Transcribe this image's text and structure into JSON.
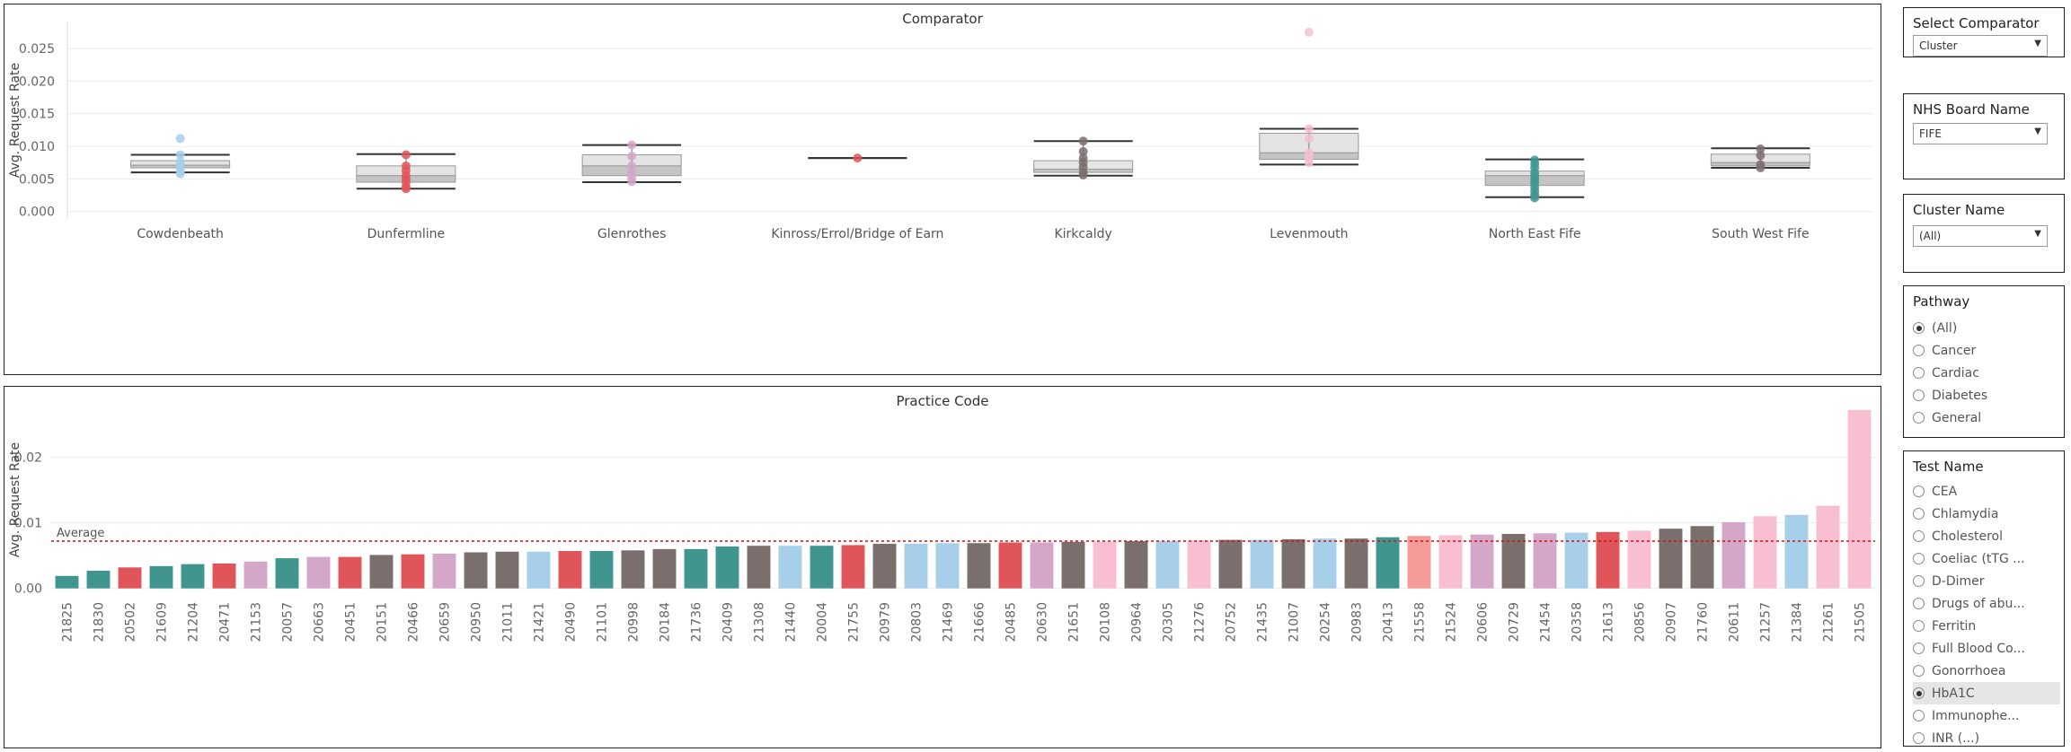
{
  "colors": {
    "teal": "#40968f",
    "red": "#e05559",
    "grey": "#7b6f6e",
    "pink": "#f7bfd0",
    "lilac": "#d4a7c9",
    "blue": "#a7cfe9",
    "salmon": "#f49a97",
    "avg_line": "#cc1111"
  },
  "filters": {
    "comparator": {
      "title": "Select Comparator",
      "value": "Cluster"
    },
    "board": {
      "title": "NHS Board Name",
      "value": "FIFE"
    },
    "cluster": {
      "title": "Cluster Name",
      "value": "(All)"
    },
    "pathway": {
      "title": "Pathway",
      "options": [
        "(All)",
        "Cancer",
        "Cardiac",
        "Diabetes",
        "General"
      ],
      "selected": 0
    },
    "test": {
      "title": "Test Name",
      "options": [
        "CEA",
        "Chlamydia",
        "Cholesterol",
        "Coeliac (tTG ...",
        "D-Dimer",
        "Drugs of abu...",
        "Ferritin",
        "Full Blood Co...",
        "Gonorrhoea",
        "HbA1C",
        "Immunophe...",
        "INR (...)"
      ],
      "selected": 9
    }
  },
  "chart_data": [
    {
      "type": "box",
      "title": "Comparator",
      "ylabel": "Avg. Request Rate",
      "ylim": [
        -0.001,
        0.029
      ],
      "yticks": [
        "0.000",
        "0.005",
        "0.010",
        "0.015",
        "0.020",
        "0.025"
      ],
      "ytick_values": [
        0,
        0.005,
        0.01,
        0.015,
        0.02,
        0.025
      ],
      "categories": [
        {
          "name": "Cowdenbeath",
          "color": "blue",
          "whisker_low": 0.006,
          "q1": 0.0067,
          "median": 0.0071,
          "q3": 0.0078,
          "whisker_high": 0.0087,
          "points": [
            0.0112,
            0.0087,
            0.0077,
            0.0072,
            0.0066,
            0.0062,
            0.0058
          ]
        },
        {
          "name": "Dunfermline",
          "color": "red",
          "whisker_low": 0.0035,
          "q1": 0.0045,
          "median": 0.0055,
          "q3": 0.007,
          "whisker_high": 0.0088,
          "points": [
            0.0087,
            0.007,
            0.0063,
            0.0055,
            0.005,
            0.0045,
            0.0038,
            0.0035
          ]
        },
        {
          "name": "Glenrothes",
          "color": "lilac",
          "whisker_low": 0.0045,
          "q1": 0.0055,
          "median": 0.007,
          "q3": 0.0087,
          "whisker_high": 0.0102,
          "points": [
            0.0102,
            0.0085,
            0.007,
            0.006,
            0.0052,
            0.0046
          ]
        },
        {
          "name": "Kinross/Errol/Bridge of Earn",
          "color": "red",
          "whisker_low": 0.0082,
          "q1": 0.0082,
          "median": 0.0082,
          "q3": 0.0082,
          "whisker_high": 0.0082,
          "points": [
            0.0082
          ]
        },
        {
          "name": "Kirkcaldy",
          "color": "grey",
          "whisker_low": 0.0055,
          "q1": 0.006,
          "median": 0.0065,
          "q3": 0.0078,
          "whisker_high": 0.0108,
          "points": [
            0.0108,
            0.0092,
            0.0082,
            0.0075,
            0.0068,
            0.006,
            0.0056
          ]
        },
        {
          "name": "Levenmouth",
          "color": "pink",
          "whisker_low": 0.0072,
          "q1": 0.008,
          "median": 0.009,
          "q3": 0.012,
          "whisker_high": 0.0127,
          "points": [
            0.0275,
            0.0127,
            0.0112,
            0.009,
            0.0082,
            0.0075
          ]
        },
        {
          "name": "North East Fife",
          "color": "teal",
          "whisker_low": 0.0022,
          "q1": 0.004,
          "median": 0.0055,
          "q3": 0.0062,
          "whisker_high": 0.008,
          "points": [
            0.0079,
            0.0073,
            0.0067,
            0.0059,
            0.0054,
            0.0049,
            0.0044,
            0.0037,
            0.0031,
            0.0025,
            0.0021
          ]
        },
        {
          "name": "South West Fife",
          "color": "grey",
          "whisker_low": 0.0067,
          "q1": 0.007,
          "median": 0.0075,
          "q3": 0.0088,
          "whisker_high": 0.0097,
          "points": [
            0.0096,
            0.0086,
            0.0072,
            0.0067
          ]
        }
      ]
    },
    {
      "type": "bar",
      "title": "Practice Code",
      "ylabel": "Avg. Request Rate",
      "ylim": [
        -0.001,
        0.028
      ],
      "yticks": [
        "0.00",
        "0.01",
        "0.02"
      ],
      "ytick_values": [
        0,
        0.01,
        0.02
      ],
      "average": {
        "label": "Average",
        "value": 0.0072
      },
      "categories": [
        "21825",
        "21830",
        "20502",
        "21609",
        "21204",
        "20471",
        "21153",
        "20057",
        "20663",
        "20451",
        "20151",
        "20466",
        "20659",
        "20950",
        "21011",
        "21421",
        "20490",
        "21101",
        "20998",
        "20184",
        "21736",
        "20409",
        "21308",
        "21440",
        "20004",
        "21755",
        "20979",
        "20803",
        "21469",
        "21666",
        "20485",
        "20630",
        "21651",
        "20108",
        "20964",
        "20305",
        "21276",
        "20752",
        "21435",
        "21007",
        "20254",
        "20983",
        "20413",
        "21558",
        "21524",
        "20606",
        "20729",
        "21454",
        "20358",
        "21613",
        "20856",
        "20907",
        "21760",
        "20611",
        "21257",
        "21384",
        "21261",
        "21505"
      ],
      "values": [
        0.0019,
        0.0027,
        0.0032,
        0.0034,
        0.0037,
        0.0038,
        0.0041,
        0.0046,
        0.0048,
        0.0048,
        0.0051,
        0.0052,
        0.0053,
        0.0055,
        0.0056,
        0.0056,
        0.0057,
        0.0057,
        0.0058,
        0.006,
        0.006,
        0.0064,
        0.0065,
        0.0065,
        0.0065,
        0.0066,
        0.0068,
        0.0068,
        0.0069,
        0.0069,
        0.007,
        0.007,
        0.0071,
        0.0071,
        0.0072,
        0.0072,
        0.0073,
        0.0074,
        0.0074,
        0.0075,
        0.0076,
        0.0076,
        0.0078,
        0.008,
        0.0081,
        0.0082,
        0.0083,
        0.0084,
        0.0085,
        0.0086,
        0.0088,
        0.0091,
        0.0095,
        0.0101,
        0.011,
        0.0112,
        0.0126,
        0.0272
      ],
      "bar_colors": [
        "teal",
        "teal",
        "red",
        "teal",
        "teal",
        "red",
        "lilac",
        "teal",
        "lilac",
        "red",
        "grey",
        "red",
        "lilac",
        "grey",
        "grey",
        "blue",
        "red",
        "teal",
        "grey",
        "grey",
        "teal",
        "teal",
        "grey",
        "blue",
        "teal",
        "red",
        "grey",
        "blue",
        "blue",
        "grey",
        "red",
        "lilac",
        "grey",
        "pink",
        "grey",
        "blue",
        "pink",
        "grey",
        "blue",
        "grey",
        "blue",
        "grey",
        "teal",
        "salmon",
        "pink",
        "lilac",
        "grey",
        "lilac",
        "blue",
        "red",
        "pink",
        "grey",
        "grey",
        "lilac",
        "pink",
        "blue",
        "pink",
        "pink"
      ]
    }
  ]
}
